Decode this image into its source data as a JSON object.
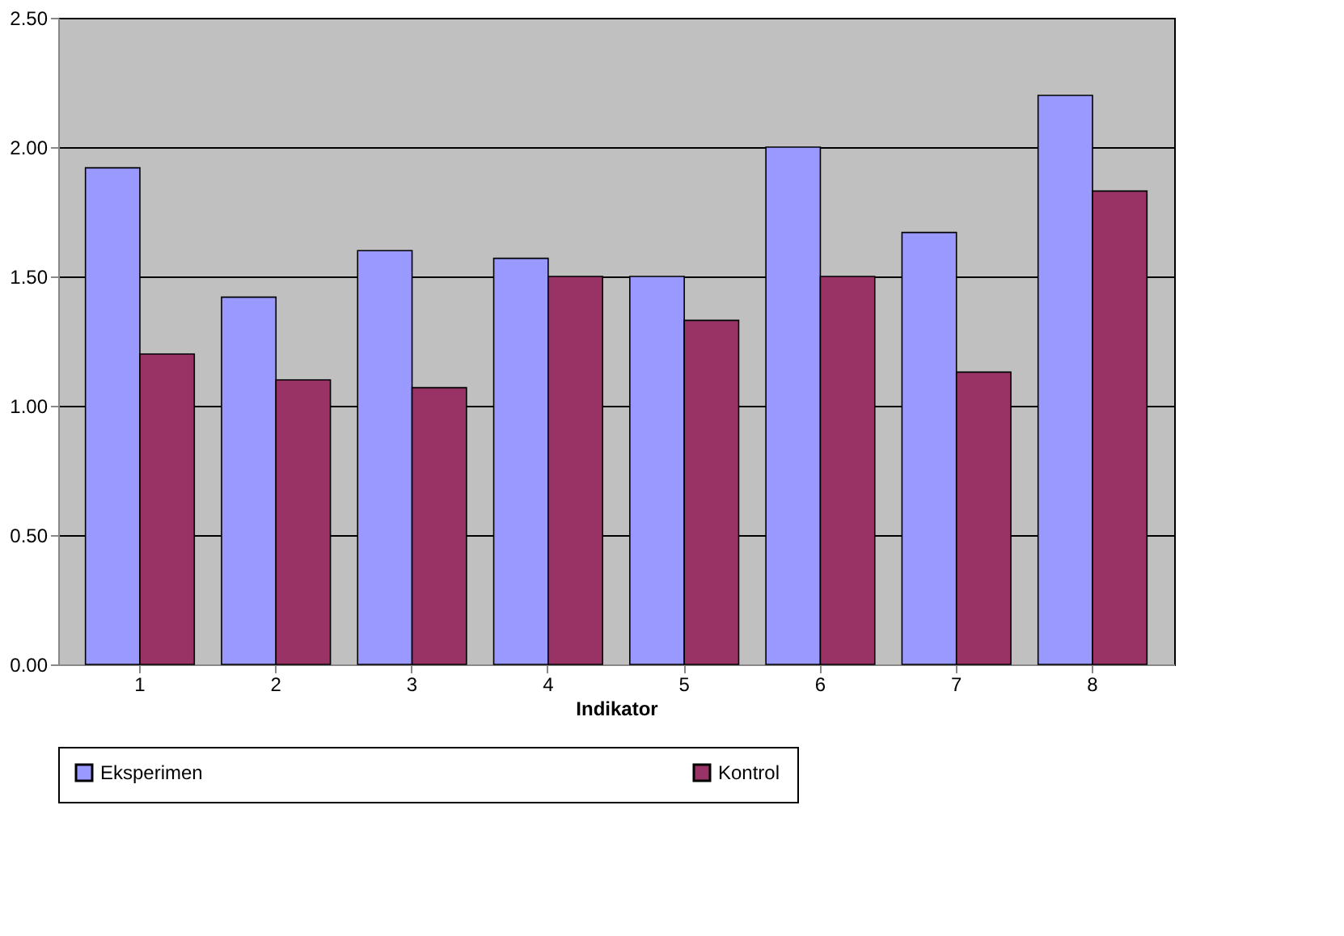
{
  "chart_data": {
    "type": "bar",
    "xlabel": "Indikator",
    "categories": [
      "1",
      "2",
      "3",
      "4",
      "5",
      "6",
      "7",
      "8"
    ],
    "series": [
      {
        "name": "Eksperimen",
        "color": "#9999ff",
        "values": [
          1.92,
          1.42,
          1.6,
          1.57,
          1.5,
          2.0,
          1.67,
          2.2
        ]
      },
      {
        "name": "Kontrol",
        "color": "#993366",
        "values": [
          1.2,
          1.1,
          1.07,
          1.5,
          1.33,
          1.5,
          1.13,
          1.83
        ]
      }
    ],
    "ylim": [
      0,
      2.5
    ],
    "yticks": [
      {
        "value": 0,
        "label": "0.00"
      },
      {
        "value": 0.5,
        "label": "0.50"
      },
      {
        "value": 1,
        "label": "1.00"
      },
      {
        "value": 1.5,
        "label": "1.50"
      },
      {
        "value": 2,
        "label": "2.00"
      },
      {
        "value": 2.5,
        "label": "2.50"
      }
    ],
    "grid": "y",
    "legend": "bottom"
  }
}
